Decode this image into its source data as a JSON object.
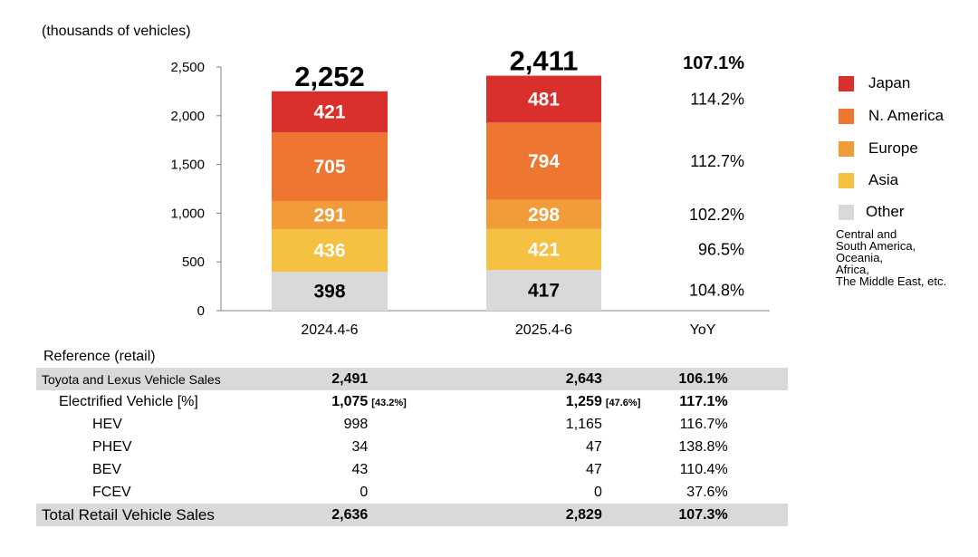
{
  "chart_data": {
    "type": "bar",
    "stacked": true,
    "unit_label": "(thousands of vehicles)",
    "categories": [
      "2024.4-6",
      "2025.4-6"
    ],
    "yoy_label": "YoY",
    "ylim": [
      0,
      2500
    ],
    "yticks": [
      "0",
      "500",
      "1,000",
      "1,500",
      "2,000",
      "2,500"
    ],
    "ytick_values": [
      0,
      500,
      1000,
      1500,
      2000,
      2500
    ],
    "totals": [
      2252,
      2411
    ],
    "total_labels": [
      "2,252",
      "2,411"
    ],
    "total_yoy": "107.1%",
    "series": [
      {
        "name": "Other",
        "color": "#d9d9d9",
        "label_color": "#000000",
        "values": [
          398,
          417
        ],
        "yoy": "104.8%"
      },
      {
        "name": "Asia",
        "color": "#f4c143",
        "label_color": "#ffffff",
        "values": [
          436,
          421
        ],
        "yoy": "96.5%"
      },
      {
        "name": "Europe",
        "color": "#f19c39",
        "label_color": "#ffffff",
        "values": [
          291,
          298
        ],
        "yoy": "102.2%"
      },
      {
        "name": "N. America",
        "color": "#ed7631",
        "label_color": "#ffffff",
        "values": [
          705,
          794
        ],
        "yoy": "112.7%"
      },
      {
        "name": "Japan",
        "color": "#d9302e",
        "label_color": "#ffffff",
        "values": [
          421,
          481
        ],
        "yoy": "114.2%"
      }
    ],
    "legend": {
      "placement": "right",
      "order": [
        "Japan",
        "N. America",
        "Europe",
        "Asia",
        "Other"
      ],
      "note": [
        "Central and",
        "South America,",
        "Oceania,",
        "Africa,",
        "The Middle East, etc."
      ]
    }
  },
  "reference": {
    "title": "Reference (retail)",
    "rows": [
      {
        "label": "Toyota and Lexus Vehicle Sales",
        "v1": "2,491",
        "s1": "",
        "v2": "2,643",
        "s2": "",
        "yoy": "106.1%",
        "bold": true,
        "shade": true,
        "indent": 0,
        "small": true
      },
      {
        "label": "Electrified Vehicle [%]",
        "v1": "1,075",
        "s1": "[43.2%]",
        "v2": "1,259",
        "s2": "[47.6%]",
        "yoy": "117.1%",
        "bold": true,
        "shade": false,
        "indent": 1
      },
      {
        "label": "HEV",
        "v1": "998",
        "s1": "",
        "v2": "1,165",
        "s2": "",
        "yoy": "116.7%",
        "bold": false,
        "shade": false,
        "indent": 2
      },
      {
        "label": "PHEV",
        "v1": "34",
        "s1": "",
        "v2": "47",
        "s2": "",
        "yoy": "138.8%",
        "bold": false,
        "shade": false,
        "indent": 2
      },
      {
        "label": "BEV",
        "v1": "43",
        "s1": "",
        "v2": "47",
        "s2": "",
        "yoy": "110.4%",
        "bold": false,
        "shade": false,
        "indent": 2
      },
      {
        "label": "FCEV",
        "v1": "0",
        "s1": "",
        "v2": "0",
        "s2": "",
        "yoy": "37.6%",
        "bold": false,
        "shade": false,
        "indent": 2
      },
      {
        "label": "Total Retail Vehicle Sales",
        "v1": "2,636",
        "s1": "",
        "v2": "2,829",
        "s2": "",
        "yoy": "107.3%",
        "bold": true,
        "shade": true,
        "indent": 0
      }
    ]
  }
}
